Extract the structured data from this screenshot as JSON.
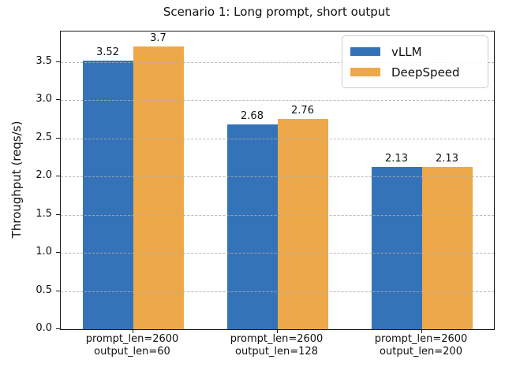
{
  "figure": {
    "title": "Scenario 1: Long prompt, short output"
  },
  "chart_data": {
    "type": "bar",
    "title": "Scenario 1: Long prompt, short output",
    "xlabel": "",
    "ylabel": "Throughput (reqs/s)",
    "categories": [
      {
        "line1": "prompt_len=2600",
        "line2": "output_len=60"
      },
      {
        "line1": "prompt_len=2600",
        "line2": "output_len=128"
      },
      {
        "line1": "prompt_len=2600",
        "line2": "output_len=200"
      }
    ],
    "series": [
      {
        "name": "vLLM",
        "color": "#3573b9",
        "values": [
          3.52,
          2.68,
          2.13
        ],
        "value_labels": [
          "3.52",
          "2.68",
          "2.13"
        ]
      },
      {
        "name": "DeepSpeed",
        "color": "#eda949",
        "values": [
          3.7,
          2.76,
          2.13
        ],
        "value_labels": [
          "3.7",
          "2.76",
          "2.13"
        ]
      }
    ],
    "ylim": [
      0,
      3.9
    ],
    "yticks": [
      0,
      0.5,
      1,
      1.5,
      2,
      2.5,
      3,
      3.5
    ],
    "ytick_labels": [
      "0.0",
      "0.5",
      "1.0",
      "1.5",
      "2.0",
      "2.5",
      "3.0",
      "3.5"
    ],
    "grid": {
      "axis": "y",
      "style": "dashed",
      "color": "#acacac",
      "drawn_over_bars": true
    },
    "legend": {
      "position": "upper right",
      "entries": [
        "vLLM",
        "DeepSpeed"
      ]
    },
    "colors": {
      "frame": "#1a1a1a",
      "background": "#ffffff",
      "text": "#111111"
    }
  }
}
